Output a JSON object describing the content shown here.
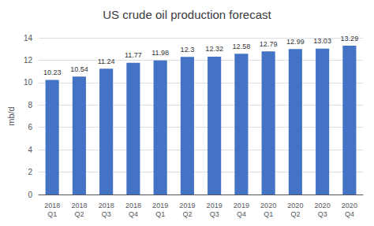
{
  "chart_data": {
    "type": "bar",
    "title": "US crude oil production forecast",
    "ylabel": "mb/d",
    "categories": [
      "2018\nQ1",
      "2018\nQ2",
      "2018\nQ3",
      "2018\nQ4",
      "2019\nQ1",
      "2019\nQ2",
      "2019\nQ3",
      "2019\nQ4",
      "2020\nQ1",
      "2020\nQ2",
      "2020\nQ3",
      "2020\nQ4"
    ],
    "values": [
      10.23,
      10.54,
      11.24,
      11.77,
      11.98,
      12.3,
      12.32,
      12.58,
      12.79,
      12.99,
      13.03,
      13.29
    ],
    "color": "#4472C4",
    "ylim": [
      0,
      14
    ],
    "yticks": [
      0,
      2,
      4,
      6,
      8,
      10,
      12,
      14
    ],
    "grid": true,
    "data_labels": true
  }
}
